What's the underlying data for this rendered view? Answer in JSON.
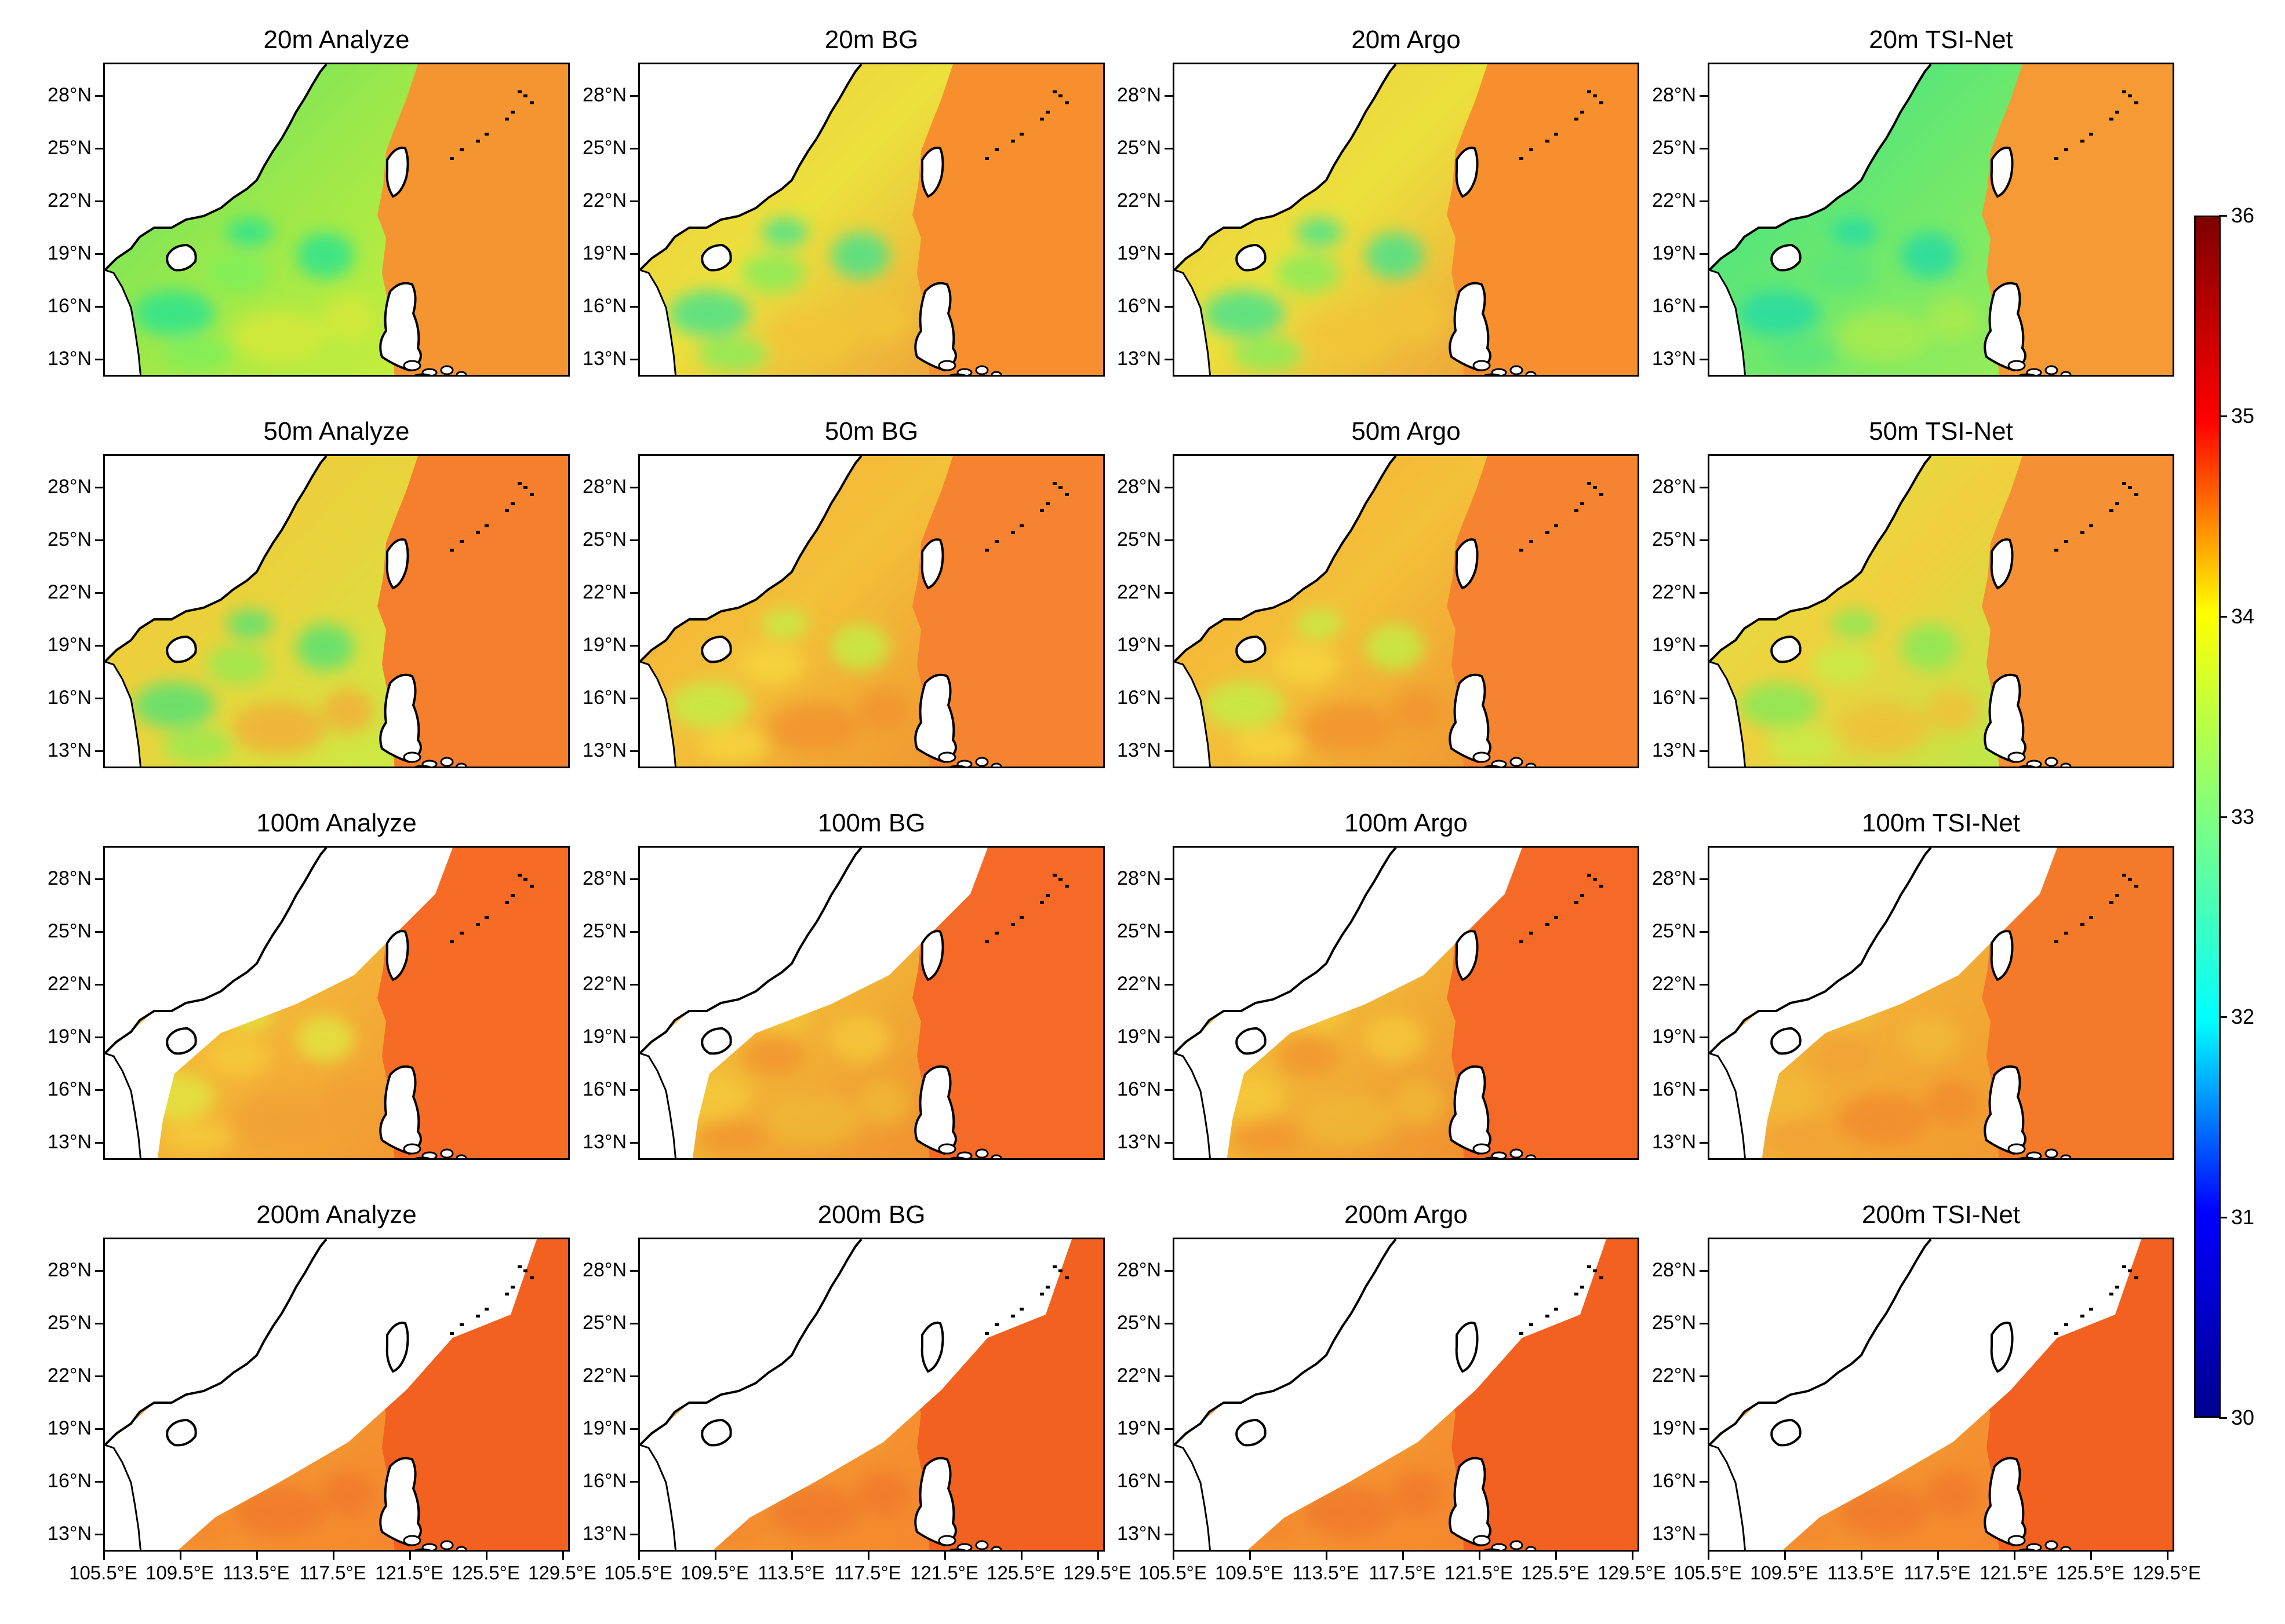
{
  "figure": {
    "lat_ticks": [
      "28°N",
      "25°N",
      "22°N",
      "19°N",
      "16°N",
      "13°N"
    ],
    "lon_ticks": [
      "105.5°E",
      "109.5°E",
      "113.5°E",
      "117.5°E",
      "121.5°E",
      "125.5°E",
      "129.5°E"
    ],
    "colorbar": {
      "min": 30,
      "max": 36,
      "ticks": [
        "36",
        "35",
        "34",
        "33",
        "32",
        "31",
        "30"
      ],
      "colormap": "jet",
      "colors": [
        "#00008f",
        "#0000ff",
        "#00ffff",
        "#7fff7f",
        "#ffff00",
        "#ff0000",
        "#7f0000"
      ]
    },
    "panels": [
      {
        "title": "20m Analyze",
        "fill": "fresh-mixed"
      },
      {
        "title": "20m BG",
        "fill": "warm-eddies"
      },
      {
        "title": "20m Argo",
        "fill": "warm-eddies"
      },
      {
        "title": "20m TSI-Net",
        "fill": "fresh-smooth"
      },
      {
        "title": "50m Analyze",
        "fill": "mid-mixed"
      },
      {
        "title": "50m BG",
        "fill": "mid-eddies"
      },
      {
        "title": "50m Argo",
        "fill": "mid-eddies"
      },
      {
        "title": "50m TSI-Net",
        "fill": "mid-smooth"
      },
      {
        "title": "100m Analyze",
        "fill": "deep-mixed"
      },
      {
        "title": "100m BG",
        "fill": "deep-eddies"
      },
      {
        "title": "100m Argo",
        "fill": "deep-eddies"
      },
      {
        "title": "100m TSI-Net",
        "fill": "deep-smooth"
      },
      {
        "title": "200m Analyze",
        "fill": "deepest"
      },
      {
        "title": "200m BG",
        "fill": "deepest"
      },
      {
        "title": "200m Argo",
        "fill": "deepest"
      },
      {
        "title": "200m TSI-Net",
        "fill": "deepest"
      }
    ]
  }
}
